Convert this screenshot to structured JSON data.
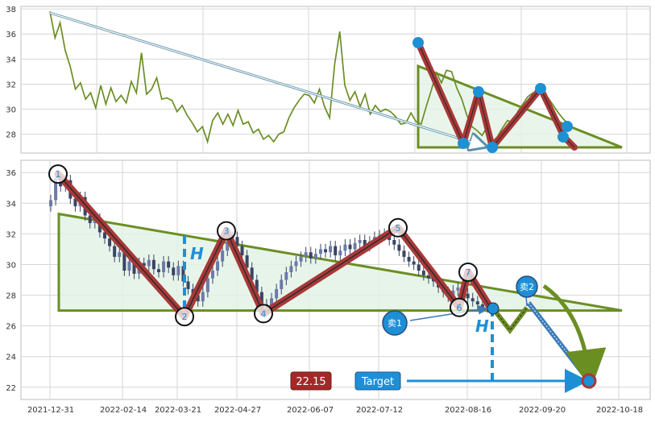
{
  "chart_data": [
    {
      "type": "line",
      "panel": "overview",
      "ylim": [
        26.5,
        38.2
      ],
      "yticks": [
        28,
        30,
        32,
        34,
        36,
        38
      ],
      "grid": true,
      "colors": {
        "line": "#6b8e23",
        "pattern": "#a83838",
        "marker": "#1e90d6",
        "fill": "#e3f2e6"
      },
      "series": [
        {
          "values": [
            37.8,
            35.7,
            36.9,
            34.7,
            33.4,
            31.6,
            32.1,
            30.8,
            31.3,
            30.1,
            31.9,
            30.4,
            31.7,
            30.6,
            31.1,
            30.5,
            32.2,
            31.3,
            34.5,
            31.2,
            31.6,
            32.5,
            30.8,
            30.9,
            30.7,
            29.8,
            30.3,
            29.5,
            28.9,
            28.2,
            28.6,
            27.4,
            29.1,
            29.7,
            28.8,
            29.6,
            28.7,
            29.9,
            28.8,
            29.0,
            28.1,
            28.4,
            27.6,
            27.9,
            27.4,
            28.0,
            28.2,
            29.3,
            30.1,
            30.7,
            31.2,
            31.1,
            30.5,
            31.6,
            30.2,
            29.3,
            33.6,
            36.2,
            31.9,
            30.7,
            31.4,
            30.2,
            31.2,
            29.6,
            30.3,
            29.8,
            30.0,
            29.8,
            29.4,
            28.8,
            28.9,
            29.7,
            29.0,
            28.8,
            30.2,
            31.5,
            32.9,
            32.1,
            33.1,
            33.0,
            31.7,
            30.8,
            29.5,
            28.6,
            28.3,
            27.9,
            28.6,
            27.4,
            27.8,
            28.5,
            29.1,
            28.9,
            29.8,
            30.4,
            31.0,
            31.3,
            31.2,
            31.4,
            30.9,
            30.3,
            29.7,
            29.2,
            28.8,
            28.5
          ]
        }
      ]
    },
    {
      "type": "candlestick",
      "panel": "main",
      "ylim": [
        21.2,
        36.8
      ],
      "yticks": [
        22,
        24,
        26,
        28,
        30,
        32,
        34,
        36
      ],
      "x_tick_labels": [
        "2021-12-31",
        "2022-02-14",
        "2022-03-21",
        "2022-04-27",
        "2022-06-07",
        "2022-07-12",
        "2022-08-16",
        "2022-09-20",
        "2022-10-18"
      ],
      "grid": true,
      "colors": {
        "up": "#6b7aa8",
        "down": "#3a4563",
        "zigzag": "#a83838",
        "triangle": "#6b8e23",
        "fill": "#e3f2e6",
        "marker": "#1e90d6",
        "label_box": "#a32929",
        "target_box": "#1e8fd5"
      },
      "closes": [
        34.2,
        35.6,
        35.1,
        35.5,
        34.3,
        33.8,
        34.4,
        33.2,
        32.7,
        33.0,
        32.1,
        31.7,
        31.2,
        30.5,
        30.8,
        29.6,
        30.2,
        29.4,
        30.1,
        29.9,
        30.3,
        29.7,
        29.5,
        30.2,
        29.8,
        29.3,
        29.9,
        28.9,
        28.4,
        28.0,
        27.6,
        28.2,
        29.1,
        29.6,
        30.2,
        30.9,
        31.5,
        31.8,
        31.2,
        30.6,
        29.8,
        29.0,
        28.2,
        27.4,
        27.2,
        27.8,
        28.4,
        29.0,
        29.5,
        29.9,
        30.2,
        30.5,
        30.8,
        30.4,
        30.7,
        31.0,
        30.8,
        31.2,
        30.6,
        30.9,
        31.3,
        31.0,
        31.4,
        31.6,
        31.2,
        31.5,
        31.8,
        31.9,
        32.0,
        31.6,
        31.3,
        30.9,
        30.5,
        30.2,
        30.0,
        29.6,
        29.3,
        29.1,
        28.9,
        28.5,
        28.2,
        27.9,
        28.3,
        28.5,
        28.1,
        27.8,
        27.6,
        27.4,
        27.2,
        27.3
      ],
      "pattern": {
        "points": [
          {
            "label": "1",
            "price": 35.9
          },
          {
            "label": "2",
            "price": 26.6
          },
          {
            "label": "3",
            "price": 32.2
          },
          {
            "label": "4",
            "price": 26.8
          },
          {
            "label": "5",
            "price": 32.4
          },
          {
            "label": "6",
            "price": 27.2
          },
          {
            "label": "7",
            "price": 29.5
          }
        ],
        "triangle": {
          "top_start": 33.3,
          "apex": 27.0,
          "base": 27.0
        },
        "height_label": "H"
      },
      "signals": [
        {
          "label": "卖1",
          "price": 27.0
        },
        {
          "label": "卖2",
          "price": 28.4
        }
      ],
      "target_price": "22.15",
      "target_label": "Target",
      "target_value": 22.15
    }
  ]
}
